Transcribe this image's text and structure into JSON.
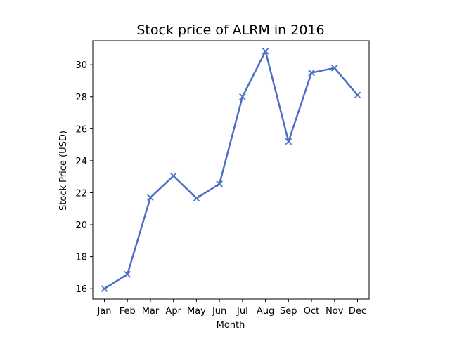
{
  "chart_data": {
    "type": "line",
    "title": "Stock price of ALRM in 2016",
    "xlabel": "Month",
    "ylabel": "Stock Price (USD)",
    "categories": [
      "Jan",
      "Feb",
      "Mar",
      "Apr",
      "May",
      "Jun",
      "Jul",
      "Aug",
      "Sep",
      "Oct",
      "Nov",
      "Dec"
    ],
    "series": [
      {
        "values": [
          16.0,
          16.9,
          21.7,
          23.05,
          21.65,
          22.55,
          28.0,
          30.85,
          25.2,
          29.5,
          29.8,
          28.1
        ],
        "color": "#4c6ec7",
        "marker": "x"
      }
    ],
    "ylim": [
      15.35,
      31.5
    ],
    "yticks": [
      16,
      18,
      20,
      22,
      24,
      26,
      28,
      30
    ],
    "grid": false,
    "legend": "none"
  }
}
